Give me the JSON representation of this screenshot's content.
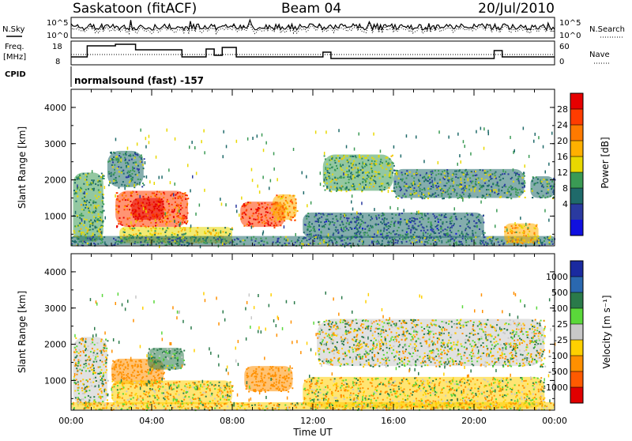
{
  "header": {
    "site": "Saskatoon (fitACF)",
    "beam": "Beam 04",
    "date": "20/Jul/2010"
  },
  "status_panel": {
    "left_top_label": "N.Sky",
    "left_mid_label": "Freq.",
    "left_mid_unit": "[MHz]",
    "left_bottom_label": "CPID",
    "right_top_label": "N.Search",
    "right_mid_label": "Nave",
    "noise_ticks": [
      "10^5",
      "10^0"
    ],
    "freq_ticks": [
      "18",
      "8"
    ],
    "nave_ticks": [
      "60",
      "0"
    ],
    "cpid_text": "normalsound (fast) -157"
  },
  "axes": {
    "ylabel": "Slant Range [km]",
    "xlabel": "Time UT",
    "y_ticks": [
      "4000",
      "3000",
      "2000",
      "1000"
    ],
    "x_ticks": [
      "00:00",
      "04:00",
      "08:00",
      "12:00",
      "16:00",
      "20:00",
      "00:00"
    ]
  },
  "power_scale": {
    "label": "Power [dB]",
    "ticks": [
      "28",
      "24",
      "20",
      "16",
      "12",
      "8",
      "4"
    ],
    "colors": [
      "#e60000",
      "#ff3c00",
      "#ff7a00",
      "#ffb000",
      "#e8d800",
      "#3a9a54",
      "#1f6a6a",
      "#2a3aa0",
      "#1010e0"
    ]
  },
  "velocity_scale": {
    "label": "Velocity [m s⁻¹]",
    "ticks": [
      "1000",
      "500",
      "100",
      "25",
      "-25",
      "-100",
      "-500",
      "-1000"
    ],
    "colors": [
      "#1a2aa0",
      "#2a68b0",
      "#2a7a4a",
      "#5ad83a",
      "#c8c8c8",
      "#ffd000",
      "#ff9000",
      "#ff5a00",
      "#e00000"
    ]
  },
  "chart_data": [
    {
      "type": "heatmap",
      "title": "Power",
      "x_range_ut_hours": [
        0,
        24
      ],
      "y_range_km": [
        180,
        4500
      ],
      "colorbar": "Power [dB]",
      "color_range": [
        0,
        30
      ],
      "regions": [
        {
          "t0": 0.1,
          "t1": 1.6,
          "r0": 300,
          "r1": 2200,
          "db": 12
        },
        {
          "t0": 2.2,
          "t1": 5.8,
          "r0": 700,
          "r1": 1700,
          "db": 24
        },
        {
          "t0": 3.0,
          "t1": 4.6,
          "r0": 900,
          "r1": 1500,
          "db": 28
        },
        {
          "t0": 1.8,
          "t1": 3.6,
          "r0": 1800,
          "r1": 2800,
          "db": 10
        },
        {
          "t0": 2.4,
          "t1": 8.0,
          "r0": 250,
          "r1": 700,
          "db": 14
        },
        {
          "t0": 8.4,
          "t1": 10.6,
          "r0": 700,
          "r1": 1400,
          "db": 26
        },
        {
          "t0": 10.0,
          "t1": 11.2,
          "r0": 900,
          "r1": 1600,
          "db": 20
        },
        {
          "t0": 12.5,
          "t1": 16.0,
          "r0": 1700,
          "r1": 2700,
          "db": 12
        },
        {
          "t0": 16.0,
          "t1": 22.5,
          "r0": 1500,
          "r1": 2300,
          "db": 10
        },
        {
          "t0": 11.5,
          "t1": 20.5,
          "r0": 400,
          "r1": 1100,
          "db": 8
        },
        {
          "t0": 0.0,
          "t1": 24.0,
          "r0": 200,
          "r1": 450,
          "db": 9
        },
        {
          "t0": 21.5,
          "t1": 23.2,
          "r0": 250,
          "r1": 800,
          "db": 18
        },
        {
          "t0": 22.8,
          "t1": 24.0,
          "r0": 1500,
          "r1": 2100,
          "db": 10
        }
      ]
    },
    {
      "type": "heatmap",
      "title": "Velocity",
      "x_range_ut_hours": [
        0,
        24
      ],
      "y_range_km": [
        180,
        4500
      ],
      "colorbar": "Velocity [m s-1]",
      "color_range": [
        -1000,
        1000
      ],
      "regions": [
        {
          "t0": 0.1,
          "t1": 1.8,
          "r0": 300,
          "r1": 2200,
          "v": 0
        },
        {
          "t0": 2.0,
          "t1": 4.6,
          "r0": 900,
          "r1": 1600,
          "v": -300
        },
        {
          "t0": 3.8,
          "t1": 5.6,
          "r0": 1300,
          "r1": 1900,
          "v": 150
        },
        {
          "t0": 2.0,
          "t1": 8.0,
          "r0": 350,
          "r1": 1000,
          "v": -60
        },
        {
          "t0": 8.6,
          "t1": 11.0,
          "r0": 700,
          "r1": 1400,
          "v": -300
        },
        {
          "t0": 12.2,
          "t1": 23.5,
          "r0": 1400,
          "r1": 2700,
          "v": 0
        },
        {
          "t0": 11.5,
          "t1": 23.5,
          "r0": 250,
          "r1": 1100,
          "v": -40
        },
        {
          "t0": 0.0,
          "t1": 24.0,
          "r0": 200,
          "r1": 400,
          "v": -80
        }
      ]
    }
  ]
}
